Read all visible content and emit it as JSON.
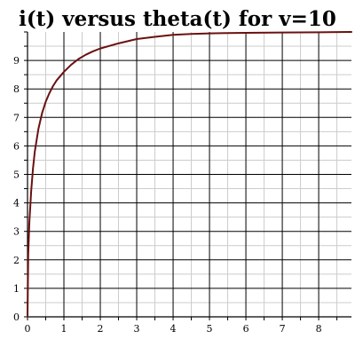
{
  "chart_data": {
    "type": "line",
    "title": "i(t) versus theta(t) for v=10",
    "xlabel": "",
    "ylabel": "",
    "xlim": [
      0,
      8.9
    ],
    "ylim": [
      0,
      10
    ],
    "x_ticks": [
      "0",
      "1",
      "2",
      "3",
      "4",
      "5",
      "6",
      "7",
      "8"
    ],
    "y_ticks": [
      "0",
      "1",
      "2",
      "3",
      "4",
      "5",
      "6",
      "7",
      "8",
      "9"
    ],
    "grid": true,
    "legend": "none",
    "colors": {
      "line": "#6b1010",
      "major_grid": "#000000",
      "minor_grid": "#cccccc",
      "background": "#ffffff"
    },
    "series": [
      {
        "x": [
          0,
          0.02,
          0.05,
          0.1,
          0.15,
          0.2,
          0.3,
          0.4,
          0.5,
          0.6,
          0.7,
          0.8,
          1.0,
          1.2,
          1.4,
          1.6,
          1.8,
          2.0,
          2.5,
          3.0,
          3.5,
          4.0,
          4.5,
          5.0,
          5.5,
          6.0,
          7.0,
          8.0,
          8.9
        ],
        "y": [
          0,
          2.2,
          3.3,
          4.4,
          5.2,
          5.8,
          6.6,
          7.15,
          7.55,
          7.85,
          8.1,
          8.3,
          8.6,
          8.85,
          9.05,
          9.2,
          9.32,
          9.42,
          9.6,
          9.75,
          9.83,
          9.9,
          9.93,
          9.95,
          9.96,
          9.97,
          9.98,
          9.99,
          10.0
        ]
      }
    ]
  }
}
